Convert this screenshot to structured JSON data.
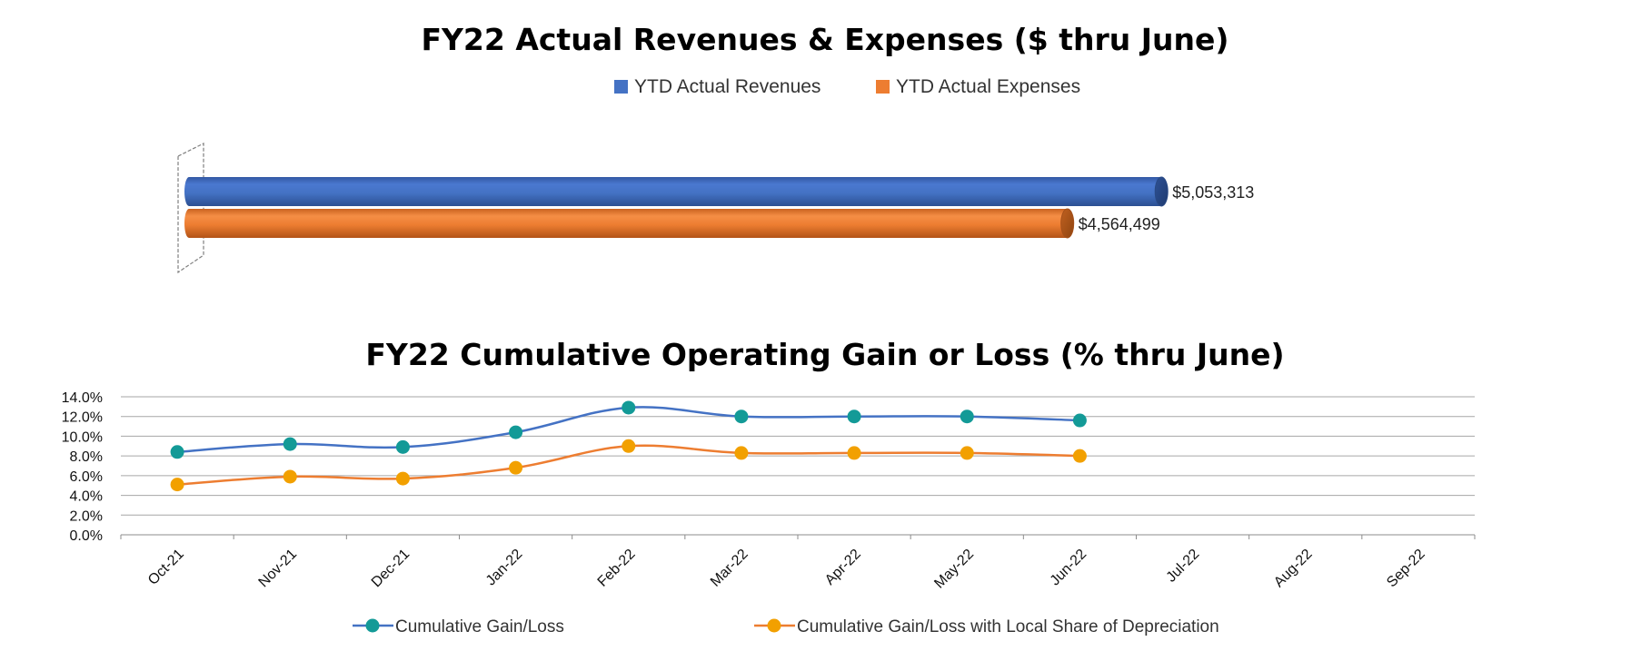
{
  "chart_data": [
    {
      "type": "bar",
      "orientation": "horizontal",
      "style": "3d-cylinder",
      "title": "FY22 Actual Revenues & Expenses ($ thru June)",
      "legend_position": "top",
      "grid": false,
      "xlim": [
        0,
        5600000
      ],
      "series": [
        {
          "name": "YTD Actual Revenues",
          "color": "#4472c4",
          "value": 5053313,
          "label": "$5,053,313"
        },
        {
          "name": "YTD Actual Expenses",
          "color": "#ed7d31",
          "value": 4564499,
          "label": "$4,564,499"
        }
      ]
    },
    {
      "type": "line",
      "title": "FY22 Cumulative Operating Gain or Loss (% thru June)",
      "legend_position": "bottom",
      "grid": true,
      "ylim": [
        0,
        14
      ],
      "y_ticks": [
        "0.0%",
        "2.0%",
        "4.0%",
        "6.0%",
        "8.0%",
        "10.0%",
        "12.0%",
        "14.0%"
      ],
      "categories": [
        "Oct-21",
        "Nov-21",
        "Dec-21",
        "Jan-22",
        "Feb-22",
        "Mar-22",
        "Apr-22",
        "May-22",
        "Jun-22",
        "Jul-22",
        "Aug-22",
        "Sep-22"
      ],
      "series": [
        {
          "name": "Cumulative Gain/Loss",
          "line_color": "#4472c4",
          "marker_color": "#139a97",
          "values": [
            8.4,
            9.2,
            8.9,
            10.4,
            12.9,
            12.0,
            12.0,
            12.0,
            11.6,
            null,
            null,
            null
          ]
        },
        {
          "name": "Cumulative Gain/Loss with Local Share of Depreciation",
          "line_color": "#ed7d31",
          "marker_color": "#f2a000",
          "values": [
            5.1,
            5.9,
            5.7,
            6.8,
            9.0,
            8.3,
            8.3,
            8.3,
            8.0,
            null,
            null,
            null
          ]
        }
      ]
    }
  ]
}
